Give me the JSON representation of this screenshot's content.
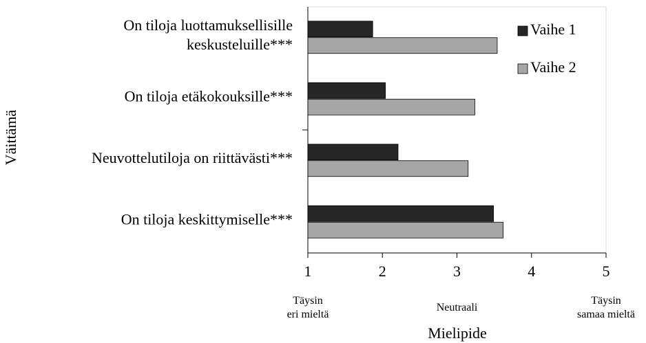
{
  "chart_data": {
    "type": "bar",
    "orientation": "horizontal",
    "categories": [
      "On tiloja luottamuksellisille\nkeskusteluille***",
      "On tiloja etäkokouksille***",
      "Neuvottelutiloja on riittävästi***",
      "On tiloja keskittymiselle***"
    ],
    "series": [
      {
        "name": "Vaihe 1",
        "color": "#262626",
        "values": [
          1.87,
          2.04,
          2.21,
          3.49
        ]
      },
      {
        "name": "Vaihe 2",
        "color": "#a6a6a6",
        "values": [
          3.54,
          3.24,
          3.15,
          3.62
        ]
      }
    ],
    "xlim": [
      1,
      5
    ],
    "xticks": [
      1,
      2,
      3,
      4,
      5
    ],
    "x_label": "Mielipide",
    "y_label": "Väittämä",
    "annotations": [
      {
        "text": "Täysin\neri mieltä",
        "x": 1
      },
      {
        "text": "Neutraali",
        "x": 3
      },
      {
        "text": "Täysin\nsamaa mieltä",
        "x": 5
      }
    ],
    "legend": "top-right"
  }
}
